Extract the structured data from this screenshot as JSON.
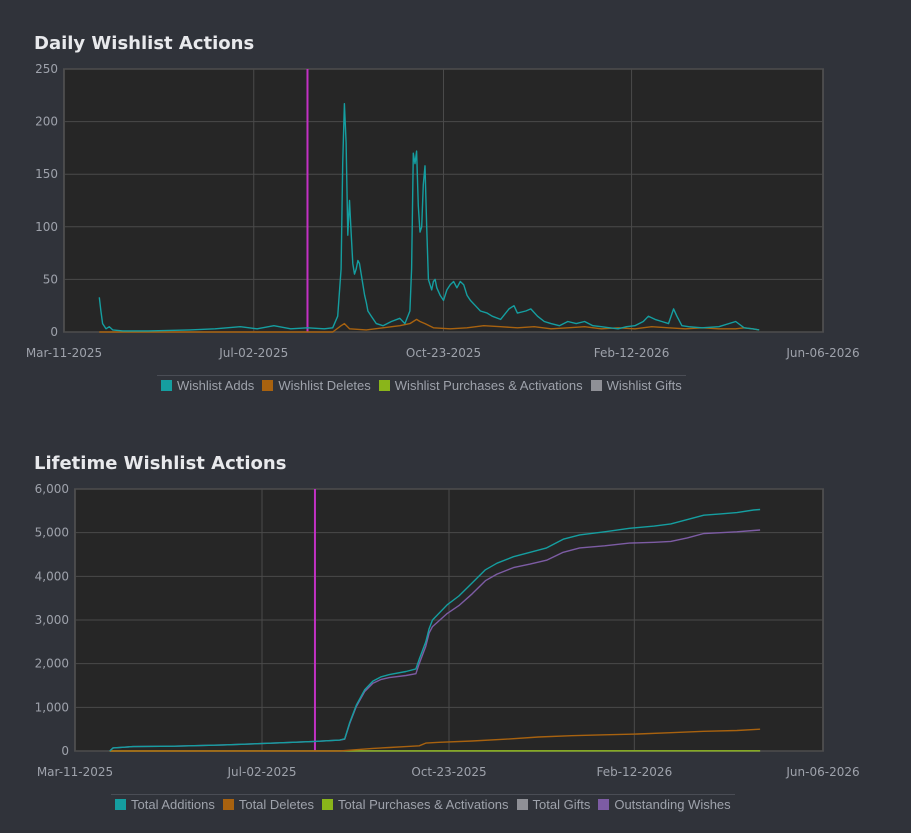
{
  "colors": {
    "adds": "#159ea0",
    "deletes": "#a8620f",
    "purchases": "#8ab51a",
    "gifts": "#8f9096",
    "outstanding": "#7d5ca4",
    "marker": "#c231c4",
    "plot_bg": "#262626",
    "grid": "#4a4a4a"
  },
  "chart_data": [
    {
      "type": "line",
      "title": "Daily Wishlist Actions",
      "x_tick_labels": [
        "Mar-11-2025",
        "Jul-02-2025",
        "Oct-23-2025",
        "Feb-12-2026",
        "Jun-06-2026"
      ],
      "x_tick_days": [
        0,
        113,
        226,
        338,
        452
      ],
      "y_ticks": [
        0,
        50,
        100,
        150,
        200,
        250
      ],
      "ylim": [
        0,
        250
      ],
      "marker_day": 145,
      "legend": [
        "Wishlist Adds",
        "Wishlist Deletes",
        "Wishlist Purchases & Activations",
        "Wishlist Gifts"
      ],
      "series": [
        {
          "name": "Wishlist Adds",
          "color_key": "adds",
          "points": [
            [
              21,
              33
            ],
            [
              22,
              20
            ],
            [
              23,
              8
            ],
            [
              25,
              3
            ],
            [
              27,
              5
            ],
            [
              29,
              2
            ],
            [
              35,
              1
            ],
            [
              50,
              1
            ],
            [
              75,
              2
            ],
            [
              90,
              3
            ],
            [
              105,
              5
            ],
            [
              115,
              3
            ],
            [
              125,
              6
            ],
            [
              135,
              3
            ],
            [
              145,
              4
            ],
            [
              155,
              3
            ],
            [
              160,
              4
            ],
            [
              163,
              15
            ],
            [
              165,
              60
            ],
            [
              166,
              160
            ],
            [
              167,
              217
            ],
            [
              168,
              180
            ],
            [
              169,
              92
            ],
            [
              170,
              125
            ],
            [
              171,
              95
            ],
            [
              172,
              65
            ],
            [
              173,
              55
            ],
            [
              174,
              60
            ],
            [
              175,
              68
            ],
            [
              176,
              65
            ],
            [
              177,
              55
            ],
            [
              178,
              45
            ],
            [
              179,
              35
            ],
            [
              180,
              28
            ],
            [
              181,
              20
            ],
            [
              183,
              15
            ],
            [
              186,
              8
            ],
            [
              190,
              6
            ],
            [
              195,
              10
            ],
            [
              200,
              13
            ],
            [
              203,
              8
            ],
            [
              206,
              20
            ],
            [
              207,
              60
            ],
            [
              208,
              170
            ],
            [
              209,
              160
            ],
            [
              210,
              172
            ],
            [
              211,
              120
            ],
            [
              212,
              95
            ],
            [
              213,
              100
            ],
            [
              214,
              140
            ],
            [
              215,
              158
            ],
            [
              216,
              100
            ],
            [
              217,
              50
            ],
            [
              219,
              40
            ],
            [
              220,
              48
            ],
            [
              221,
              50
            ],
            [
              222,
              42
            ],
            [
              224,
              35
            ],
            [
              226,
              30
            ],
            [
              228,
              40
            ],
            [
              230,
              45
            ],
            [
              232,
              48
            ],
            [
              234,
              42
            ],
            [
              236,
              48
            ],
            [
              238,
              45
            ],
            [
              240,
              35
            ],
            [
              242,
              30
            ],
            [
              245,
              25
            ],
            [
              248,
              20
            ],
            [
              252,
              18
            ],
            [
              255,
              15
            ],
            [
              260,
              12
            ],
            [
              265,
              22
            ],
            [
              268,
              25
            ],
            [
              270,
              18
            ],
            [
              275,
              20
            ],
            [
              278,
              22
            ],
            [
              282,
              15
            ],
            [
              286,
              10
            ],
            [
              290,
              8
            ],
            [
              295,
              6
            ],
            [
              300,
              10
            ],
            [
              305,
              8
            ],
            [
              310,
              10
            ],
            [
              315,
              6
            ],
            [
              320,
              5
            ],
            [
              325,
              4
            ],
            [
              330,
              3
            ],
            [
              335,
              5
            ],
            [
              340,
              6
            ],
            [
              345,
              10
            ],
            [
              348,
              15
            ],
            [
              352,
              12
            ],
            [
              356,
              10
            ],
            [
              360,
              8
            ],
            [
              363,
              22
            ],
            [
              365,
              15
            ],
            [
              368,
              6
            ],
            [
              372,
              5
            ],
            [
              380,
              4
            ],
            [
              390,
              5
            ],
            [
              400,
              10
            ],
            [
              405,
              4
            ],
            [
              410,
              3
            ],
            [
              414,
              2
            ]
          ]
        },
        {
          "name": "Wishlist Deletes",
          "color_key": "deletes",
          "points": [
            [
              21,
              0
            ],
            [
              160,
              0
            ],
            [
              165,
              6
            ],
            [
              167,
              8
            ],
            [
              170,
              3
            ],
            [
              180,
              2
            ],
            [
              190,
              4
            ],
            [
              200,
              6
            ],
            [
              206,
              8
            ],
            [
              210,
              12
            ],
            [
              212,
              10
            ],
            [
              215,
              8
            ],
            [
              220,
              4
            ],
            [
              230,
              3
            ],
            [
              240,
              4
            ],
            [
              250,
              6
            ],
            [
              260,
              5
            ],
            [
              270,
              4
            ],
            [
              280,
              5
            ],
            [
              290,
              3
            ],
            [
              300,
              4
            ],
            [
              310,
              5
            ],
            [
              320,
              3
            ],
            [
              330,
              4
            ],
            [
              340,
              3
            ],
            [
              350,
              5
            ],
            [
              360,
              4
            ],
            [
              370,
              3
            ],
            [
              380,
              4
            ],
            [
              390,
              3
            ],
            [
              400,
              3
            ],
            [
              405,
              4
            ],
            [
              410,
              3
            ],
            [
              414,
              2
            ]
          ]
        }
      ]
    },
    {
      "type": "line",
      "title": "Lifetime Wishlist Actions",
      "x_tick_labels": [
        "Mar-11-2025",
        "Jul-02-2025",
        "Oct-23-2025",
        "Feb-12-2026",
        "Jun-06-2026"
      ],
      "x_tick_days": [
        0,
        113,
        226,
        338,
        452
      ],
      "y_ticks": [
        0,
        1000,
        2000,
        3000,
        4000,
        5000,
        6000
      ],
      "y_tick_labels": [
        "0",
        "1,000",
        "2,000",
        "3,000",
        "4,000",
        "5,000",
        "6,000"
      ],
      "ylim": [
        0,
        6000
      ],
      "marker_day": 145,
      "legend": [
        "Total Additions",
        "Total Deletes",
        "Total Purchases & Activations",
        "Total Gifts",
        "Outstanding Wishes"
      ],
      "series": [
        {
          "name": "Total Additions",
          "color_key": "adds",
          "points": [
            [
              21,
              0
            ],
            [
              23,
              70
            ],
            [
              35,
              100
            ],
            [
              60,
              110
            ],
            [
              90,
              140
            ],
            [
              120,
              180
            ],
            [
              145,
              220
            ],
            [
              160,
              250
            ],
            [
              163,
              280
            ],
            [
              166,
              650
            ],
            [
              170,
              1050
            ],
            [
              175,
              1400
            ],
            [
              180,
              1600
            ],
            [
              185,
              1700
            ],
            [
              190,
              1750
            ],
            [
              200,
              1820
            ],
            [
              206,
              1880
            ],
            [
              208,
              2100
            ],
            [
              212,
              2500
            ],
            [
              214,
              2800
            ],
            [
              216,
              3000
            ],
            [
              225,
              3350
            ],
            [
              232,
              3550
            ],
            [
              240,
              3850
            ],
            [
              248,
              4150
            ],
            [
              255,
              4300
            ],
            [
              265,
              4450
            ],
            [
              275,
              4550
            ],
            [
              285,
              4650
            ],
            [
              295,
              4850
            ],
            [
              305,
              4950
            ],
            [
              320,
              5020
            ],
            [
              335,
              5100
            ],
            [
              350,
              5150
            ],
            [
              360,
              5200
            ],
            [
              370,
              5300
            ],
            [
              380,
              5400
            ],
            [
              390,
              5430
            ],
            [
              400,
              5460
            ],
            [
              410,
              5520
            ],
            [
              414,
              5530
            ]
          ]
        },
        {
          "name": "Total Deletes",
          "color_key": "deletes",
          "points": [
            [
              21,
              0
            ],
            [
              160,
              0
            ],
            [
              170,
              30
            ],
            [
              180,
              60
            ],
            [
              190,
              80
            ],
            [
              200,
              100
            ],
            [
              208,
              120
            ],
            [
              212,
              180
            ],
            [
              220,
              200
            ],
            [
              240,
              230
            ],
            [
              260,
              270
            ],
            [
              280,
              320
            ],
            [
              300,
              350
            ],
            [
              320,
              370
            ],
            [
              340,
              390
            ],
            [
              360,
              420
            ],
            [
              380,
              450
            ],
            [
              400,
              470
            ],
            [
              414,
              500
            ]
          ]
        },
        {
          "name": "Total Purchases & Activations",
          "color_key": "purchases",
          "points": [
            [
              21,
              0
            ],
            [
              414,
              5
            ]
          ]
        },
        {
          "name": "Total Gifts",
          "color_key": "gifts",
          "points": [
            [
              21,
              0
            ],
            [
              414,
              2
            ]
          ]
        },
        {
          "name": "Outstanding Wishes",
          "color_key": "outstanding",
          "points": [
            [
              21,
              0
            ],
            [
              23,
              70
            ],
            [
              35,
              100
            ],
            [
              60,
              110
            ],
            [
              90,
              140
            ],
            [
              120,
              180
            ],
            [
              145,
              220
            ],
            [
              160,
              250
            ],
            [
              163,
              270
            ],
            [
              166,
              630
            ],
            [
              170,
              1020
            ],
            [
              175,
              1360
            ],
            [
              180,
              1550
            ],
            [
              185,
              1640
            ],
            [
              190,
              1680
            ],
            [
              200,
              1730
            ],
            [
              206,
              1770
            ],
            [
              208,
              2000
            ],
            [
              212,
              2400
            ],
            [
              214,
              2700
            ],
            [
              216,
              2850
            ],
            [
              225,
              3150
            ],
            [
              232,
              3330
            ],
            [
              240,
              3600
            ],
            [
              248,
              3900
            ],
            [
              255,
              4050
            ],
            [
              265,
              4200
            ],
            [
              275,
              4280
            ],
            [
              285,
              4370
            ],
            [
              295,
              4550
            ],
            [
              305,
              4650
            ],
            [
              320,
              4700
            ],
            [
              335,
              4760
            ],
            [
              350,
              4780
            ],
            [
              360,
              4800
            ],
            [
              370,
              4880
            ],
            [
              380,
              4980
            ],
            [
              390,
              5000
            ],
            [
              400,
              5020
            ],
            [
              410,
              5050
            ],
            [
              414,
              5060
            ]
          ]
        }
      ]
    }
  ]
}
